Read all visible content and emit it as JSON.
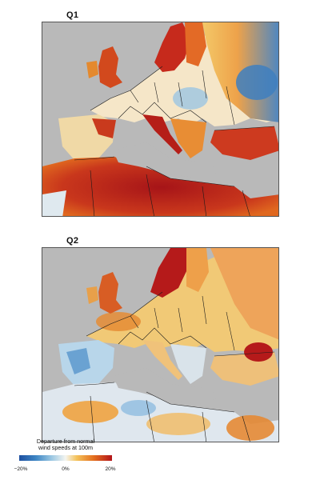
{
  "panels": [
    {
      "title": "Q1"
    },
    {
      "title": "Q2"
    }
  ],
  "legend": {
    "title_line1": "Departure from normal",
    "title_line2": "wind speeds at 100m",
    "ticks": [
      "−20%",
      "0%",
      "20%"
    ],
    "colors": {
      "negative": "#1d4fa0",
      "neutral": "#f5f5f0",
      "positive": "#b3141a"
    }
  },
  "colors": {
    "sea": "#b9b9b9",
    "border": "#1a1a1a"
  }
}
